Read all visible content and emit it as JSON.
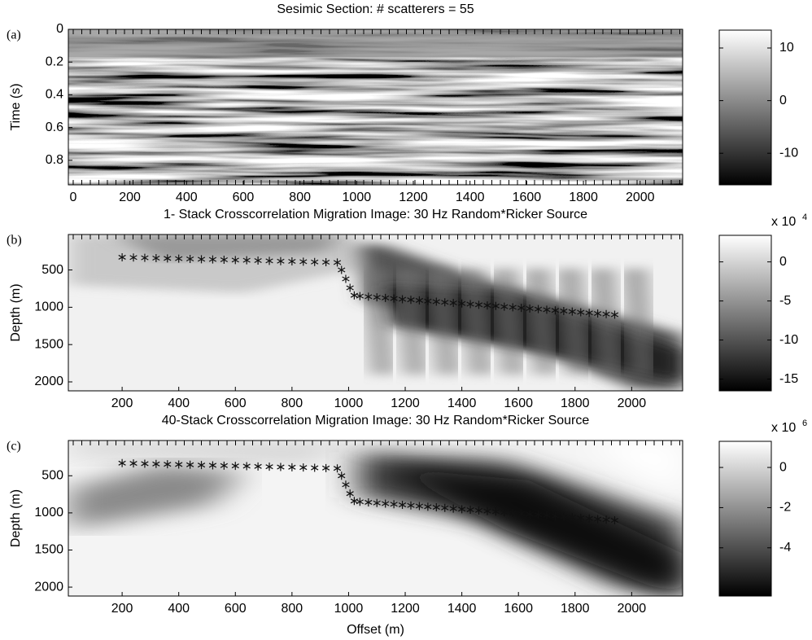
{
  "chart_data": [
    {
      "type": "image",
      "panel_label": "(a)",
      "title": "Sesimic Section: # scatterers = 55",
      "ylabel": "Time (s)",
      "xlim": [
        -17,
        2150
      ],
      "xticks": [
        0,
        200,
        400,
        600,
        800,
        1000,
        1200,
        1400,
        1600,
        1800,
        2000
      ],
      "ylim": [
        0,
        0.95
      ],
      "yticks": [
        0,
        0.2,
        0.4,
        0.6,
        0.8
      ],
      "texture": "seismic",
      "colorbar": {
        "lim": [
          -16,
          13.4
        ],
        "ticks": [
          10,
          0,
          -10
        ]
      }
    },
    {
      "type": "image",
      "panel_label": "(b)",
      "title": "1- Stack Crosscorrelation Migration Image: 30 Hz Random*Ricker Source",
      "ylabel": "Depth (m)",
      "xlim": [
        10,
        2180
      ],
      "xticks": [
        200,
        400,
        600,
        800,
        1000,
        1200,
        1400,
        1600,
        1800,
        2000
      ],
      "ylim": [
        25,
        2120
      ],
      "yticks": [
        500,
        1000,
        1500,
        2000
      ],
      "texture": "migration-1",
      "show_scatterers": true,
      "colorbar": {
        "lim": [
          -16.5,
          3.4
        ],
        "ticks": [
          0,
          -5,
          -10,
          -15
        ],
        "multiplier": "x 10",
        "exponent": "4"
      }
    },
    {
      "type": "image",
      "panel_label": "(c)",
      "title": "40-Stack Crosscorrelation Migration Image: 30 Hz Random*Ricker Source",
      "ylabel": "Depth (m)",
      "xlabel": "Offset (m)",
      "xlim": [
        10,
        2180
      ],
      "xticks": [
        200,
        400,
        600,
        800,
        1000,
        1200,
        1400,
        1600,
        1800,
        2000
      ],
      "ylim": [
        25,
        2120
      ],
      "yticks": [
        500,
        1000,
        1500,
        2000
      ],
      "texture": "migration-40",
      "show_scatterers": true,
      "colorbar": {
        "lim": [
          -6.4,
          1.3
        ],
        "ticks": [
          0,
          -2,
          -4
        ],
        "multiplier": "x 10",
        "exponent": "6"
      }
    }
  ],
  "scatterers": {
    "x": [
      200,
      240,
      280,
      320,
      360,
      400,
      440,
      480,
      520,
      560,
      600,
      640,
      680,
      720,
      760,
      800,
      840,
      880,
      920,
      960,
      975,
      990,
      1005,
      1020,
      1040,
      1070,
      1100,
      1130,
      1160,
      1190,
      1220,
      1250,
      1280,
      1310,
      1340,
      1370,
      1400,
      1430,
      1460,
      1490,
      1520,
      1550,
      1580,
      1610,
      1640,
      1670,
      1700,
      1730,
      1760,
      1790,
      1820,
      1850,
      1880,
      1910,
      1940
    ],
    "y": [
      330,
      333,
      337,
      341,
      345,
      348,
      352,
      356,
      359,
      363,
      367,
      370,
      374,
      378,
      382,
      385,
      389,
      393,
      396,
      400,
      500,
      620,
      740,
      840,
      850,
      858,
      867,
      875,
      883,
      892,
      900,
      908,
      917,
      925,
      933,
      942,
      950,
      958,
      967,
      975,
      983,
      992,
      1000,
      1008,
      1017,
      1025,
      1033,
      1042,
      1050,
      1058,
      1067,
      1075,
      1083,
      1092,
      1100
    ]
  }
}
